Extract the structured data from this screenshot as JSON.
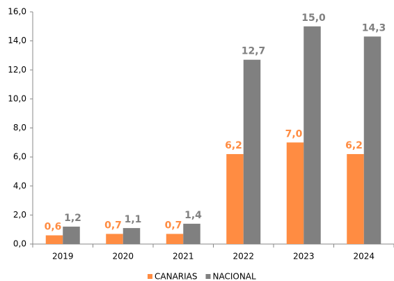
{
  "chart_data": {
    "type": "bar",
    "categories": [
      "2019",
      "2020",
      "2021",
      "2022",
      "2023",
      "2024"
    ],
    "series": [
      {
        "name": "CANARIAS",
        "color": "#ff8c42",
        "values": [
          0.6,
          0.7,
          0.7,
          6.2,
          7.0,
          6.2
        ],
        "value_labels": [
          "0,6",
          "0,7",
          "0,7",
          "6,2",
          "7,0",
          "6,2"
        ]
      },
      {
        "name": "NACIONAL",
        "color": "#808080",
        "values": [
          1.2,
          1.1,
          1.4,
          12.7,
          15.0,
          14.3
        ],
        "value_labels": [
          "1,2",
          "1,1",
          "1,4",
          "12,7",
          "15,0",
          "14,3"
        ]
      }
    ],
    "ylim": [
      0,
      16
    ],
    "yticks": [
      {
        "value": 0,
        "label": "0,0"
      },
      {
        "value": 2,
        "label": "2,0"
      },
      {
        "value": 4,
        "label": "4,0"
      },
      {
        "value": 6,
        "label": "6,0"
      },
      {
        "value": 8,
        "label": "8,0"
      },
      {
        "value": 10,
        "label": "10,0"
      },
      {
        "value": 12,
        "label": "12,0"
      },
      {
        "value": 14,
        "label": "14,0"
      },
      {
        "value": 16,
        "label": "16,0"
      }
    ],
    "legend": "bottom"
  }
}
